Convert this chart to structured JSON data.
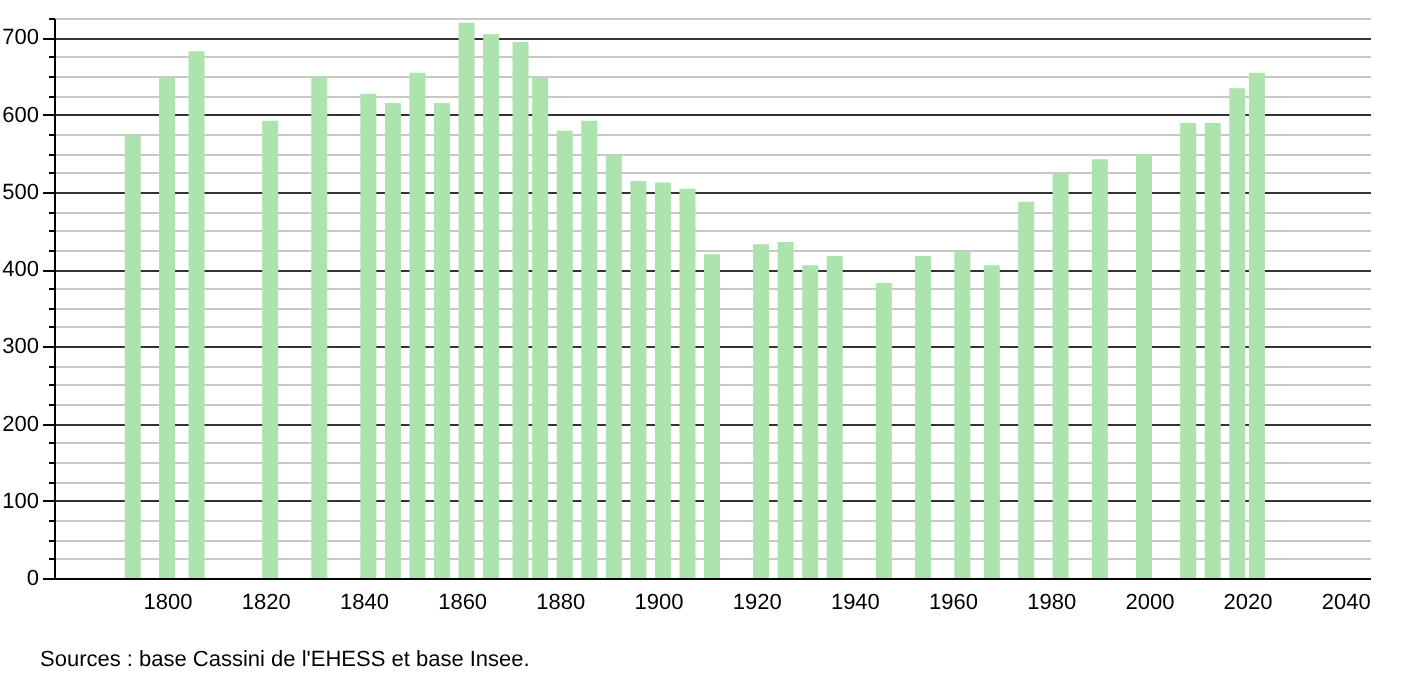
{
  "chart_data": {
    "type": "bar",
    "x": [
      1793,
      1800,
      1806,
      1821,
      1831,
      1841,
      1846,
      1851,
      1856,
      1861,
      1866,
      1872,
      1876,
      1881,
      1886,
      1891,
      1896,
      1901,
      1906,
      1911,
      1921,
      1926,
      1931,
      1936,
      1946,
      1954,
      1962,
      1968,
      1975,
      1982,
      1990,
      1999,
      2008,
      2013,
      2018,
      2022
    ],
    "values": [
      573,
      648,
      682,
      592,
      648,
      627,
      615,
      654,
      615,
      719,
      704,
      694,
      648,
      579,
      592,
      548,
      514,
      512,
      504,
      419,
      432,
      435,
      405,
      417,
      382,
      417,
      422,
      405,
      487,
      524,
      542,
      549,
      589,
      589,
      634,
      654
    ],
    "color": "#ade3ad",
    "xlim": [
      1779,
      2043
    ],
    "xticks": [
      1800,
      1820,
      1840,
      1860,
      1880,
      1900,
      1920,
      1940,
      1960,
      1980,
      2000,
      2020,
      2040
    ],
    "ylim": [
      0,
      725
    ],
    "yticks": [
      0,
      {
        "value": 25,
        "label": null
      },
      {
        "value": 50,
        "label": null
      },
      {
        "value": 75,
        "label": null
      },
      100,
      {
        "value": 125,
        "label": null
      },
      {
        "value": 150,
        "label": null
      },
      {
        "value": 175,
        "label": null
      },
      200,
      {
        "value": 225,
        "label": null
      },
      {
        "value": 250,
        "label": null
      },
      {
        "value": 275,
        "label": null
      },
      300,
      {
        "value": 325,
        "label": null
      },
      {
        "value": 350,
        "label": null
      },
      {
        "value": 375,
        "label": null
      },
      400,
      {
        "value": 425,
        "label": null
      },
      {
        "value": 450,
        "label": null
      },
      {
        "value": 475,
        "label": null
      },
      500,
      {
        "value": 525,
        "label": null
      },
      {
        "value": 550,
        "label": null
      },
      {
        "value": 575,
        "label": null
      },
      600,
      {
        "value": 625,
        "label": null
      },
      {
        "value": 650,
        "label": null
      },
      {
        "value": 675,
        "label": null
      },
      700,
      {
        "value": 725,
        "label": null
      }
    ],
    "grid": "y",
    "annotations": [
      "Sources : base Cassini de l'EHESS et base Insee."
    ]
  }
}
